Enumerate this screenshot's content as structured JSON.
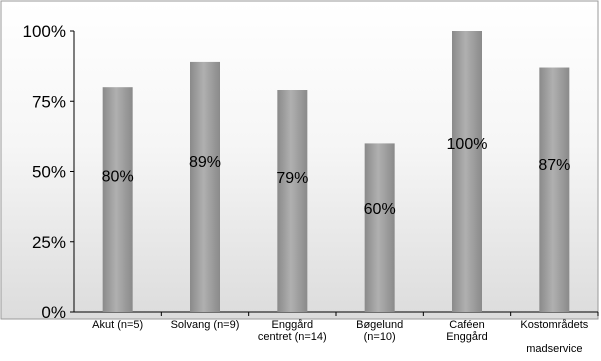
{
  "chart_data": {
    "type": "bar",
    "categories": [
      [
        "Akut (n=5)"
      ],
      [
        "Solvang (n=9)"
      ],
      [
        "Enggård",
        "centret (n=14)"
      ],
      [
        "Bøgelund",
        "(n=10)"
      ],
      [
        "Caféen",
        "Enggård"
      ],
      [
        "Kostområdets",
        "",
        "madservice"
      ]
    ],
    "values": [
      80,
      89,
      79,
      60,
      100,
      87
    ],
    "data_labels": [
      "80%",
      "89%",
      "79%",
      "60%",
      "100%",
      "87%"
    ],
    "ylim": [
      0,
      100
    ],
    "yticks": [
      0,
      25,
      50,
      75,
      100
    ],
    "ytick_labels": [
      "0%",
      "25%",
      "50%",
      "75%",
      "100%"
    ],
    "grid": false,
    "legend": "none",
    "title": "",
    "xlabel": "",
    "ylabel": "",
    "colors": {
      "bar_light": "#b0b0b0",
      "bar_dark": "#8a8a8a",
      "background_top": "#ffffff",
      "background_bottom": "#dcdcdc",
      "frame": "#9a9a9a",
      "axis": "#000000"
    }
  }
}
